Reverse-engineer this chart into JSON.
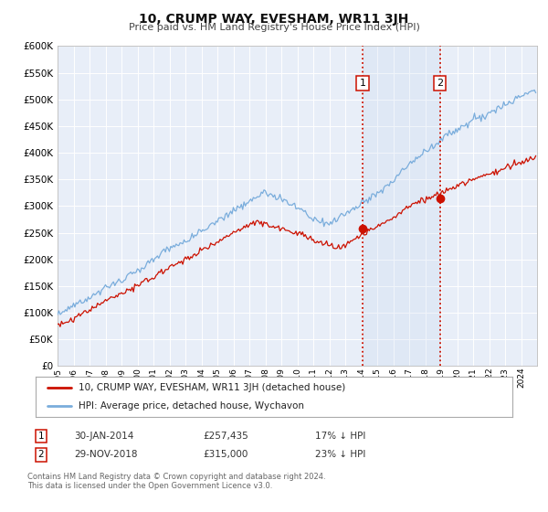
{
  "title": "10, CRUMP WAY, EVESHAM, WR11 3JH",
  "subtitle": "Price paid vs. HM Land Registry's House Price Index (HPI)",
  "background_color": "#ffffff",
  "plot_bg_color": "#e8eef8",
  "grid_color": "#ffffff",
  "hpi_color": "#7aaddc",
  "price_color": "#cc1100",
  "marker1_date_idx": 229,
  "marker2_date_idx": 287,
  "marker1_price": 257435,
  "marker2_price": 315000,
  "vline1_label": "1",
  "vline2_label": "2",
  "legend_line1": "10, CRUMP WAY, EVESHAM, WR11 3JH (detached house)",
  "legend_line2": "HPI: Average price, detached house, Wychavon",
  "table_row1": [
    "1",
    "30-JAN-2014",
    "£257,435",
    "17% ↓ HPI"
  ],
  "table_row2": [
    "2",
    "29-NOV-2018",
    "£315,000",
    "23% ↓ HPI"
  ],
  "footnote1": "Contains HM Land Registry data © Crown copyright and database right 2024.",
  "footnote2": "This data is licensed under the Open Government Licence v3.0.",
  "xmin": 1995.0,
  "xmax": 2025.0,
  "ymin": 0,
  "ymax": 600000,
  "ytick_step": 50000
}
